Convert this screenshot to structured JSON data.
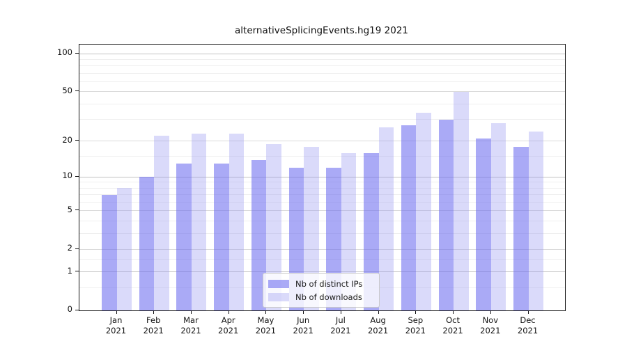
{
  "chart_data": {
    "type": "bar",
    "title": "alternativeSplicingEvents.hg19 2021",
    "categories": [
      "Jan",
      "Feb",
      "Mar",
      "Apr",
      "May",
      "Jun",
      "Jul",
      "Aug",
      "Sep",
      "Oct",
      "Nov",
      "Dec"
    ],
    "year": "2021",
    "series": [
      {
        "name": "Nb of distinct IPs",
        "color": "rgba(105,105,240,0.57)",
        "values": [
          7,
          10,
          13,
          13,
          14,
          12,
          12,
          16,
          27,
          30,
          21,
          18
        ]
      },
      {
        "name": "Nb of downloads",
        "color": "rgba(150,150,240,0.35)",
        "values": [
          8,
          22,
          23,
          23,
          19,
          18,
          16,
          26,
          34,
          50,
          28,
          24
        ]
      }
    ],
    "yscale": "log1p",
    "yticks": [
      0,
      1,
      2,
      5,
      10,
      20,
      50,
      100
    ],
    "minor_yticks": [
      0.5,
      1.5,
      3,
      4,
      6,
      7,
      8,
      9,
      15,
      30,
      40,
      60,
      70,
      80,
      90
    ],
    "decade_ticks": [
      1,
      10,
      100
    ],
    "ylim": [
      0,
      118
    ],
    "xlabel": "",
    "ylabel": "",
    "grid": true,
    "legend_position": "bottom-center"
  }
}
